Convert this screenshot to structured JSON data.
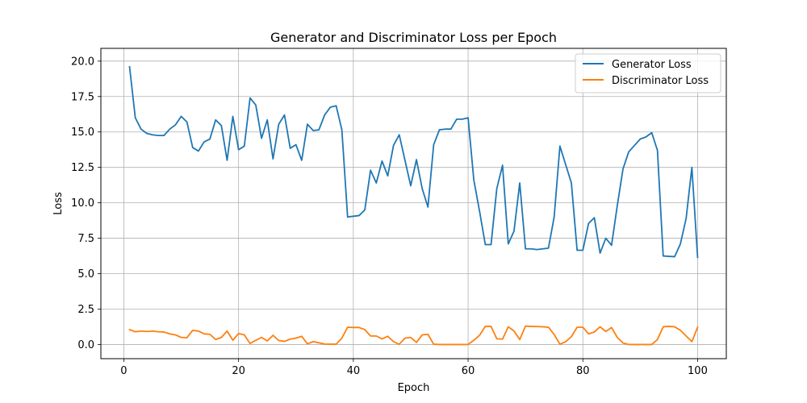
{
  "chart_data": {
    "type": "line",
    "title": "Generator and Discriminator Loss per Epoch",
    "xlabel": "Epoch",
    "ylabel": "Loss",
    "xlim": [
      -4,
      105
    ],
    "ylim": [
      -1.0,
      20.9
    ],
    "xticks": [
      0,
      20,
      40,
      60,
      80,
      100
    ],
    "yticks": [
      0.0,
      2.5,
      5.0,
      7.5,
      10.0,
      12.5,
      15.0,
      17.5,
      20.0
    ],
    "xtick_labels": [
      "0",
      "20",
      "40",
      "60",
      "80",
      "100"
    ],
    "ytick_labels": [
      "0.0",
      "2.5",
      "5.0",
      "7.5",
      "10.0",
      "12.5",
      "15.0",
      "17.5",
      "20.0"
    ],
    "grid": true,
    "legend_position": "top-right",
    "x": [
      1,
      2,
      3,
      4,
      5,
      6,
      7,
      8,
      9,
      10,
      11,
      12,
      13,
      14,
      15,
      16,
      17,
      18,
      19,
      20,
      21,
      22,
      23,
      24,
      25,
      26,
      27,
      28,
      29,
      30,
      31,
      32,
      33,
      34,
      35,
      36,
      37,
      38,
      39,
      40,
      41,
      42,
      43,
      44,
      45,
      46,
      47,
      48,
      49,
      50,
      51,
      52,
      53,
      54,
      55,
      56,
      57,
      58,
      59,
      60,
      61,
      62,
      63,
      64,
      65,
      66,
      67,
      68,
      69,
      70,
      71,
      72,
      73,
      74,
      75,
      76,
      77,
      78,
      79,
      80,
      81,
      82,
      83,
      84,
      85,
      86,
      87,
      88,
      89,
      90,
      91,
      92,
      93,
      94,
      95,
      96,
      97,
      98,
      99,
      100
    ],
    "series": [
      {
        "name": "Generator Loss",
        "color": "#1f77b4",
        "values": [
          19.6,
          16.0,
          15.2,
          14.9,
          14.8,
          14.75,
          14.75,
          15.2,
          15.5,
          16.1,
          15.7,
          13.9,
          13.65,
          14.3,
          14.5,
          15.85,
          15.45,
          13.0,
          16.1,
          13.75,
          14.0,
          17.4,
          16.9,
          14.55,
          15.85,
          13.1,
          15.55,
          16.2,
          13.85,
          14.1,
          13.0,
          15.55,
          15.1,
          15.15,
          16.2,
          16.75,
          16.85,
          15.15,
          9.0,
          9.05,
          9.1,
          9.5,
          12.3,
          11.4,
          12.95,
          11.9,
          14.05,
          14.8,
          13.0,
          11.2,
          13.05,
          11.0,
          9.7,
          14.1,
          15.15,
          15.2,
          15.2,
          15.9,
          15.9,
          16.0,
          11.6,
          9.4,
          7.05,
          7.05,
          11.0,
          12.65,
          7.1,
          8.0,
          11.4,
          6.75,
          6.75,
          6.7,
          6.75,
          6.8,
          9.0,
          14.0,
          12.7,
          11.4,
          6.65,
          6.65,
          8.55,
          8.95,
          6.45,
          7.5,
          7.0,
          9.8,
          12.4,
          13.6,
          14.05,
          14.5,
          14.65,
          14.95,
          13.7,
          6.25,
          6.22,
          6.2,
          7.1,
          8.9,
          12.5,
          6.15
        ]
      },
      {
        "name": "Discriminator Loss",
        "color": "#ff7f0e",
        "values": [
          1.05,
          0.9,
          0.95,
          0.92,
          0.95,
          0.9,
          0.88,
          0.75,
          0.68,
          0.5,
          0.48,
          1.0,
          0.95,
          0.75,
          0.72,
          0.35,
          0.5,
          0.95,
          0.3,
          0.78,
          0.68,
          0.07,
          0.3,
          0.5,
          0.25,
          0.65,
          0.28,
          0.22,
          0.38,
          0.45,
          0.58,
          0.05,
          0.2,
          0.12,
          0.03,
          0.02,
          0.02,
          0.45,
          1.22,
          1.2,
          1.2,
          1.05,
          0.6,
          0.6,
          0.4,
          0.58,
          0.2,
          0.02,
          0.45,
          0.5,
          0.15,
          0.68,
          0.72,
          0.02,
          0.0,
          0.0,
          0.0,
          0.0,
          0.0,
          0.0,
          0.3,
          0.65,
          1.28,
          1.28,
          0.4,
          0.38,
          1.25,
          0.95,
          0.35,
          1.3,
          1.28,
          1.27,
          1.25,
          1.22,
          0.7,
          0.02,
          0.2,
          0.55,
          1.22,
          1.22,
          0.75,
          0.88,
          1.25,
          0.92,
          1.2,
          0.5,
          0.1,
          0.0,
          0.0,
          0.0,
          0.0,
          0.0,
          0.35,
          1.25,
          1.28,
          1.25,
          1.0,
          0.6,
          0.2,
          1.22
        ]
      }
    ]
  }
}
